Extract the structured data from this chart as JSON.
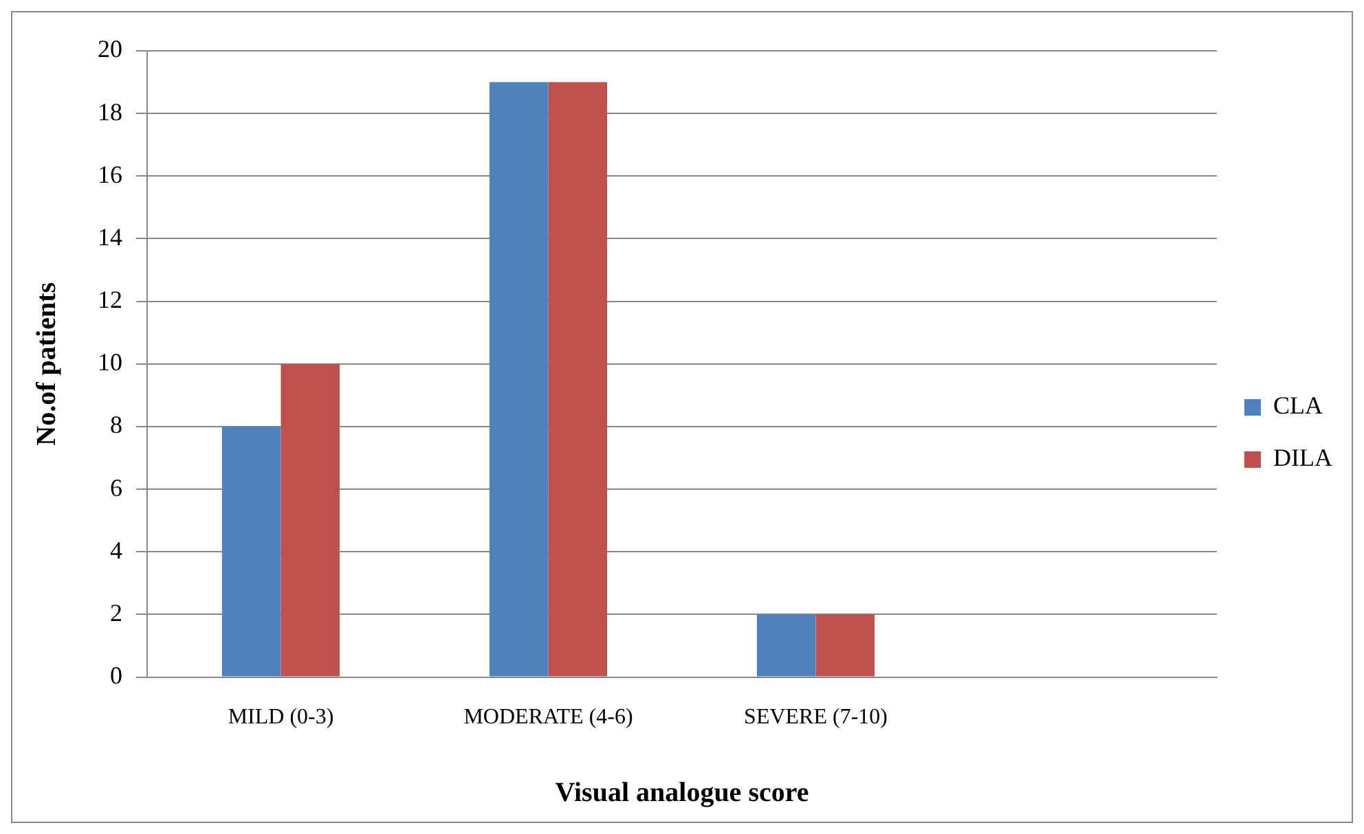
{
  "chart_data": {
    "type": "bar",
    "xlabel": "Visual analogue score",
    "ylabel": "No.of patients",
    "categories": [
      "MILD (0-3)",
      "MODERATE (4-6)",
      "SEVERE (7-10)",
      null
    ],
    "series": [
      {
        "name": "CLA",
        "color": "#4f81bd",
        "values": [
          8,
          19,
          2,
          null
        ]
      },
      {
        "name": "DILA",
        "color": "#c0504d",
        "values": [
          10,
          19,
          2,
          null
        ]
      }
    ],
    "ylim": [
      0,
      20
    ],
    "yticks": [
      0,
      2,
      4,
      6,
      8,
      10,
      12,
      14,
      16,
      18,
      20
    ],
    "grid": "y",
    "legend": "right"
  }
}
